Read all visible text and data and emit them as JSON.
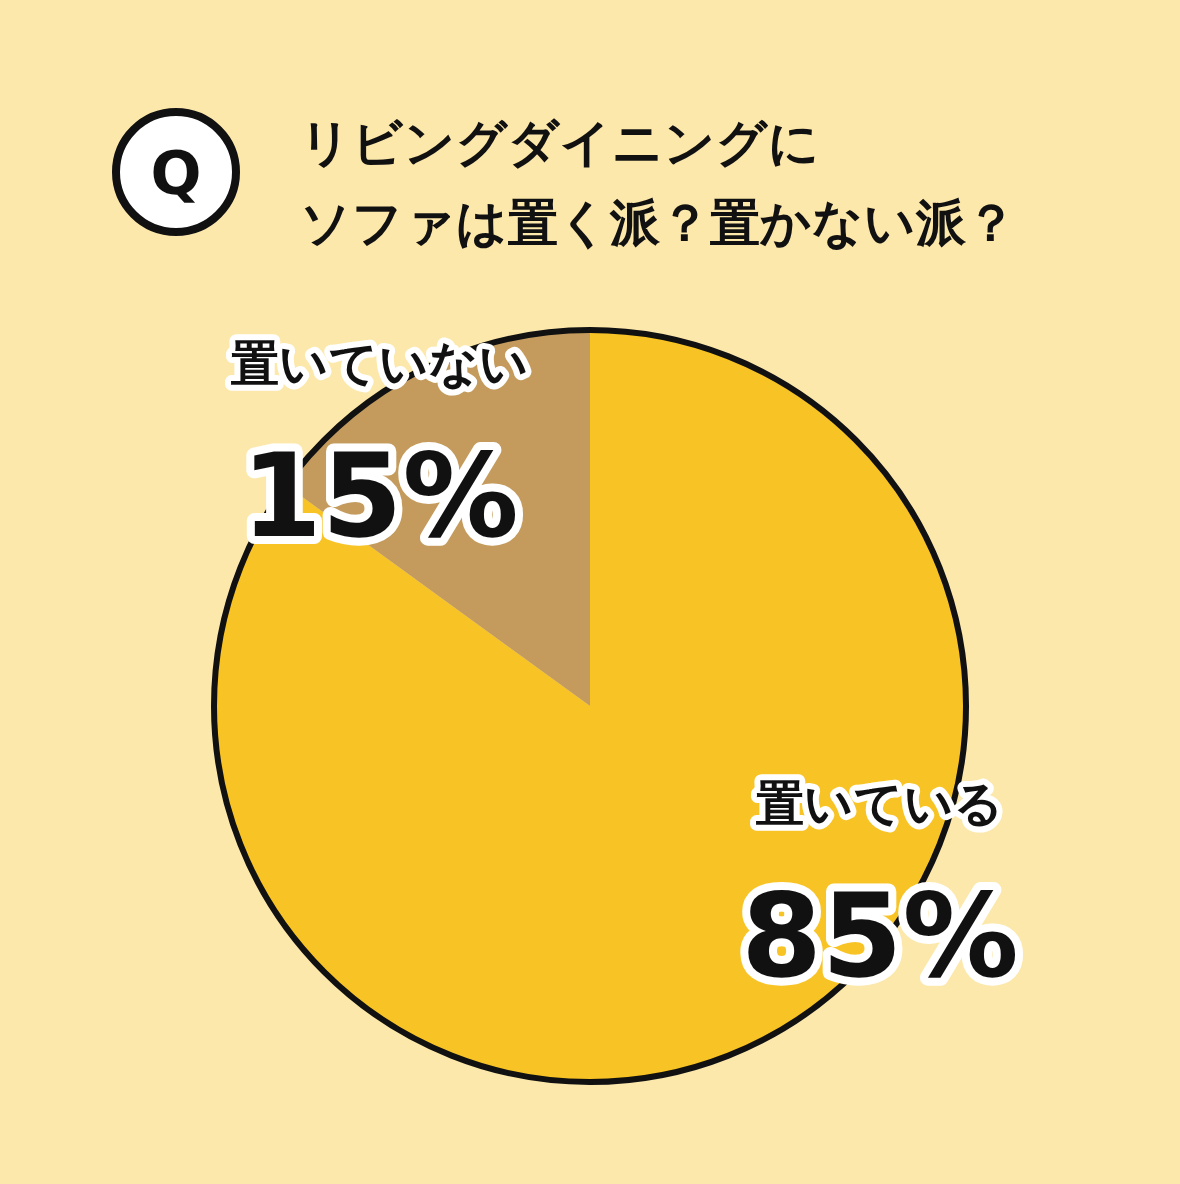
{
  "chart_data": {
    "type": "pie",
    "title": "リビングダイニングに",
    "subtitle": "ソファは置く派？置かない派？",
    "annotations": [
      "Q"
    ],
    "categories": [
      "置いている",
      "置いていない"
    ],
    "values": [
      85,
      15
    ],
    "value_labels": [
      "85%",
      "15%"
    ],
    "colors": [
      "#f8c324",
      "#c49b5c"
    ]
  }
}
